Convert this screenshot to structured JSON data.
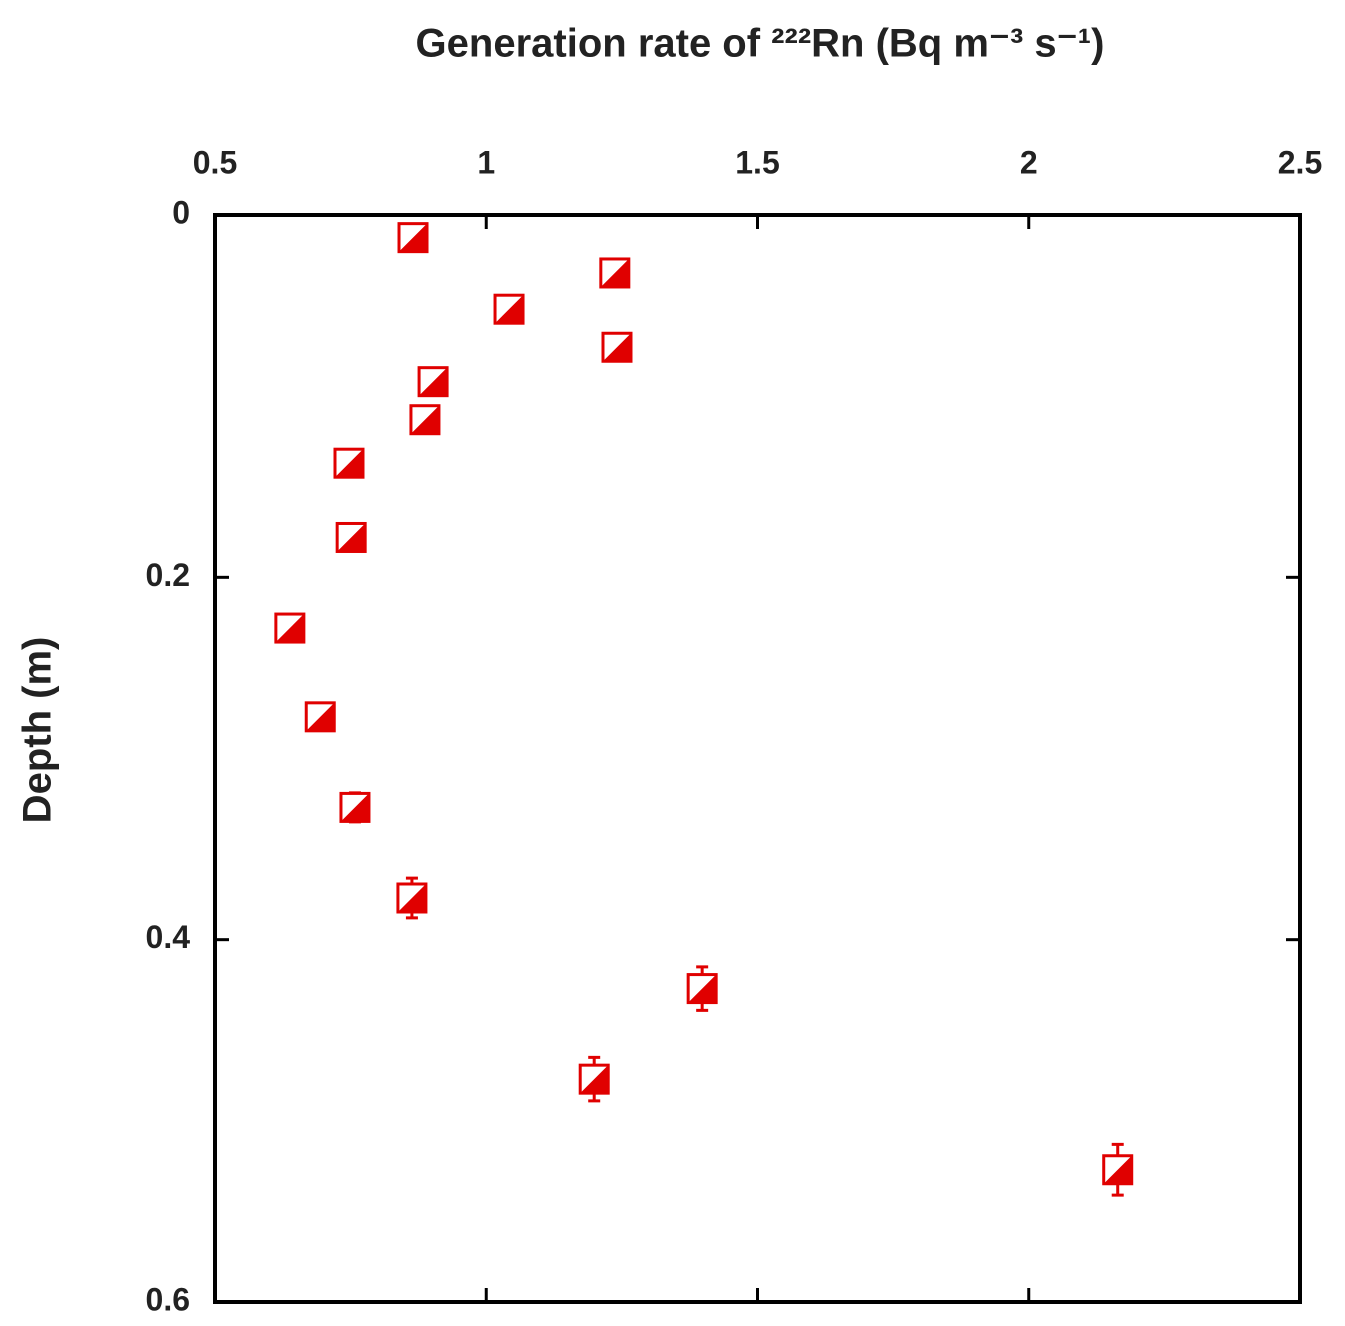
{
  "chart_data": {
    "type": "scatter",
    "title": "Generation rate of ²²²Rn (Bq m⁻³ s⁻¹)",
    "y_label": "Depth (m)",
    "x_axis_position": "top",
    "y_inverted": true,
    "xlim": [
      0.5,
      2.5
    ],
    "xticks": [
      0.5,
      1,
      1.5,
      2,
      2.5
    ],
    "ylim": [
      0,
      0.6
    ],
    "yticks": [
      0,
      0.2,
      0.4,
      0.6
    ],
    "color": "#e00000",
    "x": [
      0.865,
      1.237,
      1.042,
      1.241,
      0.902,
      0.887,
      0.747,
      0.751,
      0.638,
      0.694,
      0.758,
      0.863,
      1.398,
      1.199,
      2.164
    ],
    "y": [
      0.0125,
      0.032,
      0.052,
      0.073,
      0.092,
      0.113,
      0.137,
      0.178,
      0.228,
      0.277,
      0.327,
      0.377,
      0.427,
      0.477,
      0.527
    ],
    "yerr": [
      null,
      null,
      null,
      null,
      null,
      null,
      null,
      null,
      0.0055,
      0.007,
      0.008,
      0.011,
      0.012,
      0.012,
      0.014
    ]
  }
}
